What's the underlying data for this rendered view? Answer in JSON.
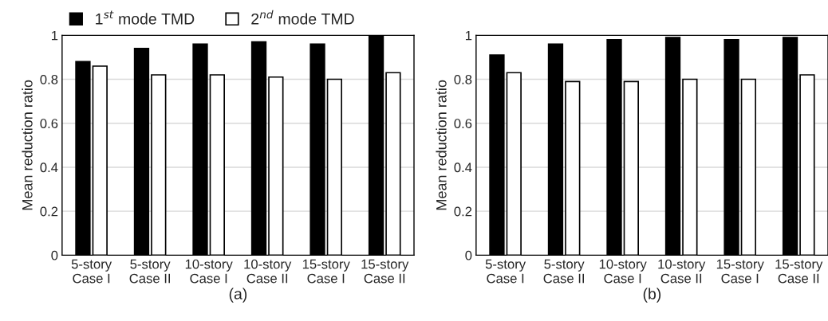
{
  "chart_data": [
    {
      "type": "bar",
      "xlabel": "(a)",
      "ylabel": "Mean reduction ratio",
      "categories": [
        "5-story\nCase I",
        "5-story\nCase II",
        "10-story\nCase I",
        "10-story\nCase II",
        "15-story\nCase I",
        "15-story\nCase II"
      ],
      "series": [
        {
          "name": "1$^{st}$ mode TMD",
          "color": "#000000",
          "values": [
            0.88,
            0.94,
            0.96,
            0.97,
            0.96,
            1.0
          ]
        },
        {
          "name": "2$^{nd}$ mode TMD",
          "color": "#ffffff",
          "values": [
            0.86,
            0.82,
            0.82,
            0.81,
            0.8,
            0.83
          ]
        }
      ],
      "ylim": [
        0,
        1
      ],
      "yticks": [
        0,
        0.2,
        0.4,
        0.6,
        0.8,
        1
      ],
      "grid": "y",
      "legend": "top"
    },
    {
      "type": "bar",
      "xlabel": "(b)",
      "ylabel": "Mean reduction ratio",
      "categories": [
        "5-story\nCase I",
        "5-story\nCase II",
        "10-story\nCase I",
        "10-story\nCase II",
        "15-story\nCase I",
        "15-story\nCase II"
      ],
      "series": [
        {
          "color": "#000000",
          "values": [
            0.91,
            0.96,
            0.98,
            0.99,
            0.98,
            0.99
          ]
        },
        {
          "color": "#ffffff",
          "values": [
            0.83,
            0.79,
            0.79,
            0.8,
            0.8,
            0.82
          ]
        }
      ],
      "ylim": [
        0,
        1
      ],
      "yticks": [
        0,
        0.2,
        0.4,
        0.6,
        0.8,
        1
      ],
      "grid": "y"
    }
  ]
}
